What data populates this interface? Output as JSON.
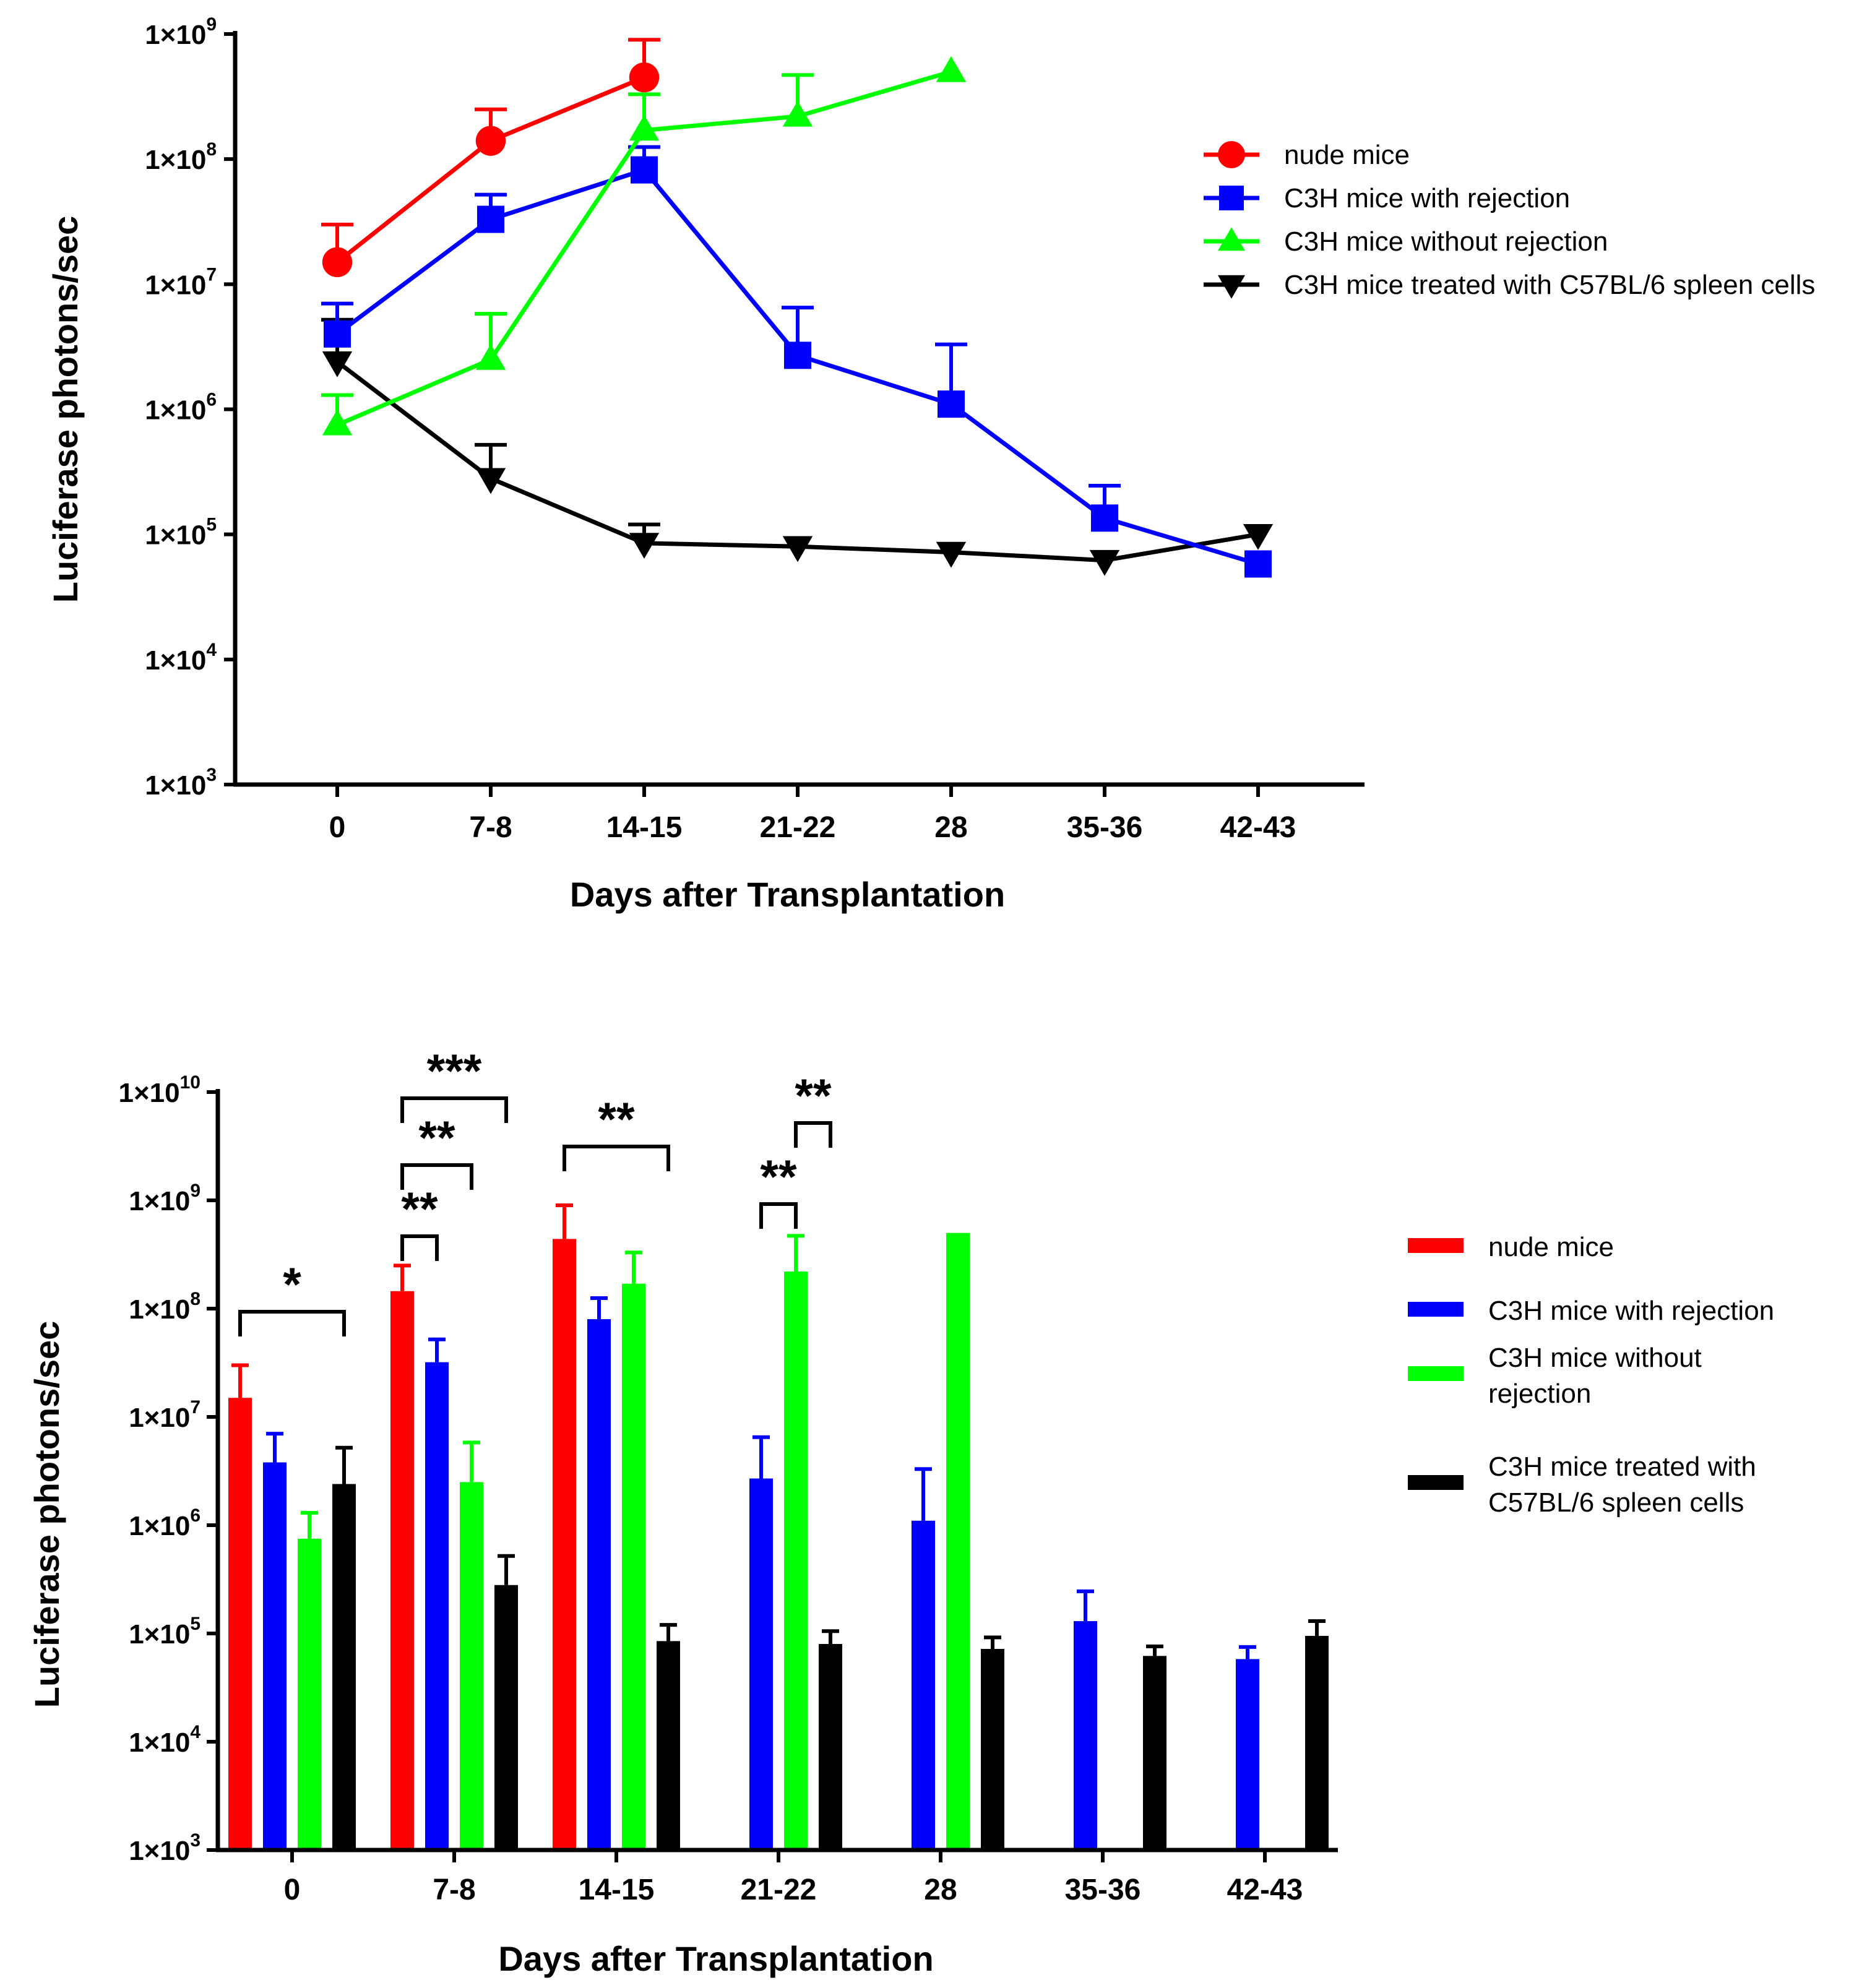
{
  "colors": {
    "nude": "#ff0000",
    "rejection": "#0000ff",
    "without_rejection": "#00ff00",
    "treated": "#000000"
  },
  "chart_data": [
    {
      "type": "line",
      "xlabel": "Days after Transplantation",
      "ylabel": "Luciferase photons/sec",
      "yscale": "log",
      "ylim": [
        1000,
        1000000000
      ],
      "yticks": [
        {
          "base": "1×10",
          "exp": "3"
        },
        {
          "base": "1×10",
          "exp": "4"
        },
        {
          "base": "1×10",
          "exp": "5"
        },
        {
          "base": "1×10",
          "exp": "6"
        },
        {
          "base": "1×10",
          "exp": "7"
        },
        {
          "base": "1×10",
          "exp": "8"
        },
        {
          "base": "1×10",
          "exp": "9"
        }
      ],
      "categories": [
        "0",
        "7-8",
        "14-15",
        "21-22",
        "28",
        "35-36",
        "42-43"
      ],
      "legend_position": "right",
      "series": [
        {
          "name": "nude mice",
          "color": "#ff0000",
          "marker": "circle",
          "values": [
            15000000,
            140000000,
            450000000,
            null,
            null,
            null,
            null
          ],
          "errors": [
            30000000,
            250000000,
            900000000,
            null,
            null,
            null,
            null
          ]
        },
        {
          "name": "C3H mice with rejection",
          "color": "#0000ff",
          "marker": "square",
          "values": [
            4000000,
            33000000,
            82000000,
            2700000,
            1100000,
            135000,
            58000
          ],
          "errors": [
            7000000,
            52000000,
            125000000,
            6500000,
            3300000,
            245000,
            null
          ]
        },
        {
          "name": "C3H mice without rejection",
          "color": "#00ff00",
          "marker": "triangle-up",
          "values": [
            750000,
            2500000,
            170000000,
            220000000,
            500000000,
            null,
            null
          ],
          "errors": [
            1300000,
            5800000,
            330000000,
            470000000,
            null,
            null,
            null
          ]
        },
        {
          "name": "C3H mice treated with C57BL/6 spleen cells",
          "color": "#000000",
          "marker": "triangle-down",
          "values": [
            2400000,
            280000,
            85000,
            80000,
            72000,
            62000,
            100000
          ],
          "errors": [
            5200000,
            520000,
            120000,
            null,
            null,
            null,
            null
          ]
        }
      ]
    },
    {
      "type": "bar",
      "xlabel": "Days after Transplantation",
      "ylabel": "Luciferase photons/sec",
      "yscale": "log",
      "ylim": [
        1000,
        10000000000
      ],
      "yticks": [
        {
          "base": "1×10",
          "exp": "3"
        },
        {
          "base": "1×10",
          "exp": "4"
        },
        {
          "base": "1×10",
          "exp": "5"
        },
        {
          "base": "1×10",
          "exp": "6"
        },
        {
          "base": "1×10",
          "exp": "7"
        },
        {
          "base": "1×10",
          "exp": "8"
        },
        {
          "base": "1×10",
          "exp": "9"
        },
        {
          "base": "1×10",
          "exp": "10"
        }
      ],
      "categories": [
        "0",
        "7-8",
        "14-15",
        "21-22",
        "28",
        "35-36",
        "42-43"
      ],
      "legend_position": "right",
      "series": [
        {
          "name": "nude mice",
          "color": "#ff0000",
          "values": [
            15000000,
            145000000,
            440000000,
            null,
            null,
            null,
            null
          ],
          "errors": [
            30000000,
            250000000,
            900000000,
            null,
            null,
            null,
            null
          ]
        },
        {
          "name": "C3H mice with rejection",
          "color": "#0000ff",
          "values": [
            3800000,
            32000000,
            80000000,
            2700000,
            1100000,
            130000,
            58000
          ],
          "errors": [
            7000000,
            52000000,
            125000000,
            6500000,
            3300000,
            245000,
            75000
          ]
        },
        {
          "name": "C3H mice without rejection",
          "color": "#00ff00",
          "values": [
            750000,
            2500000,
            170000000,
            220000000,
            500000000,
            null,
            null
          ],
          "errors": [
            1300000,
            5800000,
            330000000,
            470000000,
            null,
            null,
            null
          ]
        },
        {
          "name": "C3H mice treated with C57BL/6 spleen cells",
          "color": "#000000",
          "values": [
            2400000,
            280000,
            85000,
            80000,
            72000,
            62000,
            95000
          ],
          "errors": [
            5200000,
            520000,
            120000,
            105000,
            92000,
            76000,
            130000
          ]
        }
      ],
      "legend_lines": [
        [
          "nude mice"
        ],
        [
          "C3H mice with rejection"
        ],
        [
          "C3H mice without",
          "rejection"
        ],
        [
          "C3H mice treated with",
          "C57BL/6 spleen cells"
        ]
      ],
      "significance": [
        {
          "category": 0,
          "from": 0,
          "to": 3,
          "label": "*",
          "level": 0
        },
        {
          "category": 1,
          "from": 0,
          "to": 1,
          "label": "**",
          "level": 0
        },
        {
          "category": 1,
          "from": 0,
          "to": 2,
          "label": "**",
          "level": 1
        },
        {
          "category": 1,
          "from": 0,
          "to": 3,
          "label": "***",
          "level": 2
        },
        {
          "category": 2,
          "from": 0,
          "to": 3,
          "label": "**",
          "level": 0
        },
        {
          "category": 3,
          "from": 1,
          "to": 2,
          "label": "**",
          "level": 0
        },
        {
          "category": 3,
          "from": 2,
          "to": 3,
          "label": "**",
          "level": 1
        }
      ]
    }
  ]
}
